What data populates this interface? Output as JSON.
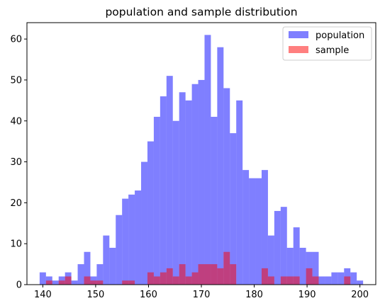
{
  "chart_data": {
    "type": "bar",
    "title": "population and sample distribution",
    "xlabel": "",
    "ylabel": "",
    "xlim": [
      137.0,
      203.0
    ],
    "ylim": [
      0,
      64
    ],
    "xticks": [
      140,
      150,
      160,
      170,
      180,
      190,
      200
    ],
    "yticks": [
      0,
      10,
      20,
      30,
      40,
      50,
      60
    ],
    "bin_edges": [
      139.4,
      140.6,
      141.8,
      143.0,
      144.2,
      145.4,
      146.6,
      147.8,
      149.0,
      150.2,
      151.4,
      152.6,
      153.8,
      155.0,
      156.2,
      157.4,
      158.6,
      159.8,
      161.0,
      162.2,
      163.4,
      164.6,
      165.8,
      167.0,
      168.2,
      169.4,
      170.6,
      171.8,
      173.0,
      174.2,
      175.4,
      176.6,
      177.8,
      179.0,
      180.2,
      181.4,
      182.6,
      183.8,
      185.0,
      186.2,
      187.4,
      188.6,
      189.8,
      191.0,
      192.2,
      193.4,
      194.6,
      195.8,
      197.0,
      198.2,
      199.4,
      200.6
    ],
    "series": [
      {
        "name": "population",
        "color": "#0000ff",
        "alpha": 0.5,
        "values": [
          3,
          2,
          1,
          2,
          3,
          1,
          5,
          8,
          2,
          5,
          12,
          9,
          17,
          21,
          22,
          23,
          30,
          35,
          41,
          46,
          51,
          40,
          47,
          45,
          49,
          50,
          61,
          41,
          58,
          48,
          37,
          45,
          28,
          26,
          26,
          28,
          12,
          18,
          19,
          9,
          14,
          9,
          8,
          8,
          2,
          2,
          3,
          3,
          4,
          3,
          1
        ]
      },
      {
        "name": "sample",
        "color": "#ff0000",
        "alpha": 0.5,
        "values": [
          0,
          1,
          0,
          1,
          2,
          0,
          0,
          2,
          1,
          1,
          0,
          0,
          0,
          1,
          1,
          0,
          0,
          3,
          2,
          3,
          4,
          2,
          5,
          2,
          3,
          5,
          5,
          5,
          4,
          8,
          5,
          0,
          0,
          0,
          0,
          4,
          2,
          0,
          2,
          2,
          2,
          0,
          4,
          2,
          0,
          0,
          0,
          0,
          2,
          0,
          0
        ]
      }
    ],
    "legend": {
      "placement": "top-right"
    },
    "grid": false
  }
}
